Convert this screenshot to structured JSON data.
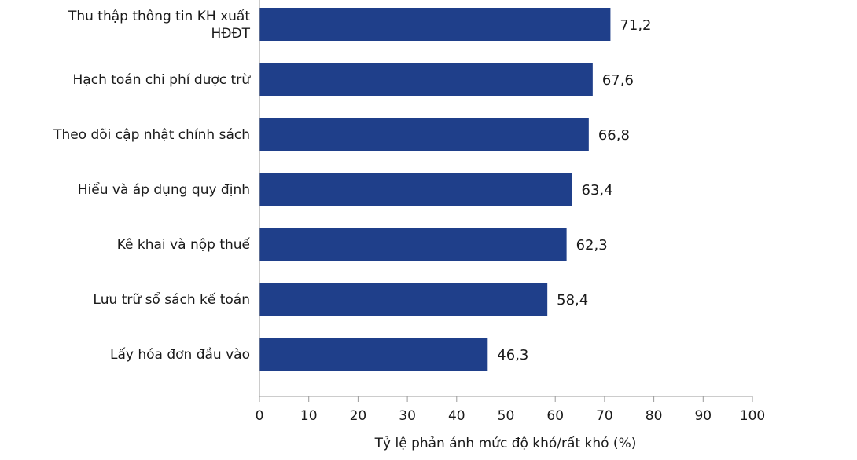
{
  "chart_data": {
    "type": "bar",
    "orientation": "horizontal",
    "categories": [
      [
        "Thu thập thông tin KH xuất",
        "HĐĐT"
      ],
      [
        "Hạch toán chi phí được trừ"
      ],
      [
        "Theo dõi cập nhật chính sách"
      ],
      [
        "Hiểu và áp dụng quy định"
      ],
      [
        "Kê khai và nộp thuế"
      ],
      [
        "Lưu trữ sổ sách kế toán"
      ],
      [
        "Lấy hóa đơn đầu vào"
      ]
    ],
    "values": [
      71.2,
      67.6,
      66.8,
      63.4,
      62.3,
      58.4,
      46.3
    ],
    "value_labels": [
      "71,2",
      "67,6",
      "66,8",
      "63,4",
      "62,3",
      "58,4",
      "46,3"
    ],
    "xlim": [
      0,
      100
    ],
    "xticks": [
      0,
      10,
      20,
      30,
      40,
      50,
      60,
      70,
      80,
      90,
      100
    ],
    "xlabel": "Tỷ lệ phản ánh mức độ khó/rất khó (%)",
    "bar_color": "#1f3f8a",
    "grid": false,
    "legend": "none"
  }
}
